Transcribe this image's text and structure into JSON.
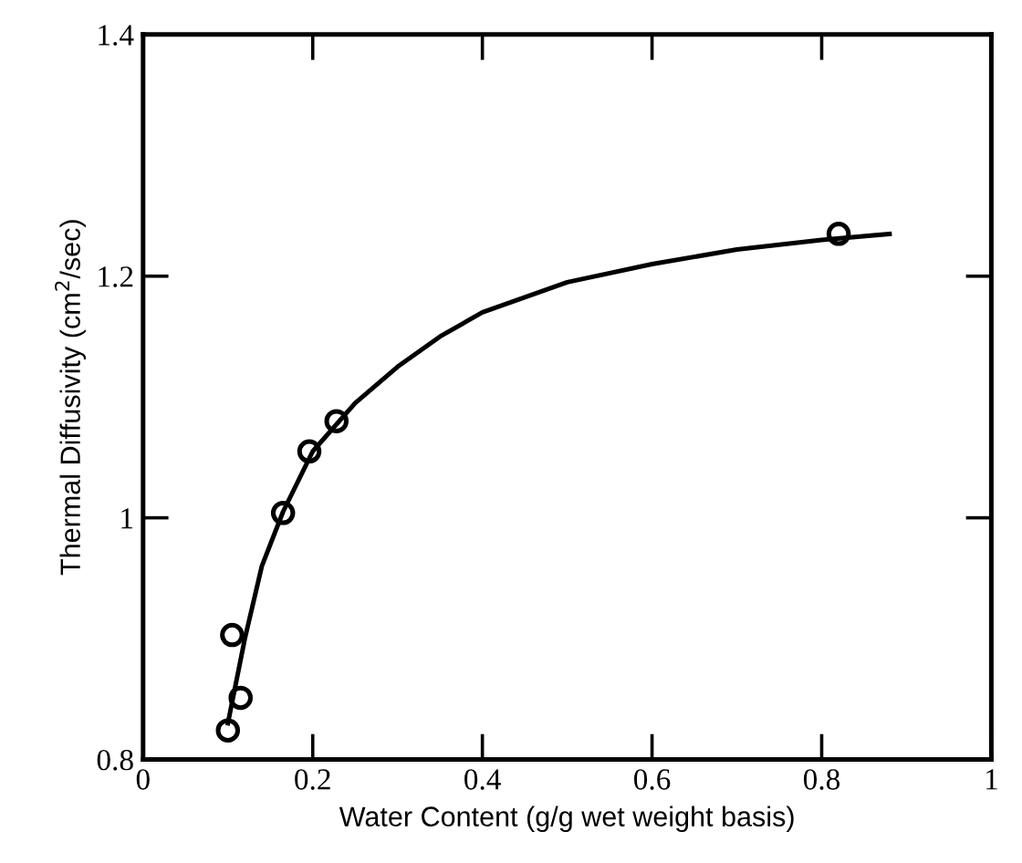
{
  "chart_data": {
    "type": "scatter",
    "xlabel": "Water Content (g/g wet weight basis)",
    "ylabel": "Thermal Diffusivity (cm$^{2}$/sec)",
    "xlim": [
      0,
      1
    ],
    "ylim": [
      0.8,
      1.4
    ],
    "xticks": [
      0,
      0.2,
      0.4,
      0.6,
      0.8,
      1
    ],
    "yticks": [
      0.8,
      1,
      1.2,
      1.4
    ],
    "grid": false,
    "legend": false,
    "series": [
      {
        "marker": "circle",
        "color": "#000000",
        "x": [
          0.1,
          0.115,
          0.105,
          0.165,
          0.196,
          0.228,
          0.82
        ],
        "values": [
          0.824,
          0.851,
          0.903,
          1.004,
          1.055,
          1.08,
          1.235
        ]
      },
      {
        "type": "line",
        "color": "#000000",
        "line_style": "solid",
        "x": [
          0.1,
          0.12,
          0.14,
          0.165,
          0.2,
          0.25,
          0.3,
          0.35,
          0.4,
          0.5,
          0.6,
          0.7,
          0.8,
          0.88
        ],
        "values": [
          0.83,
          0.9,
          0.96,
          1.005,
          1.055,
          1.095,
          1.125,
          1.15,
          1.17,
          1.195,
          1.21,
          1.222,
          1.23,
          1.235
        ]
      }
    ]
  }
}
